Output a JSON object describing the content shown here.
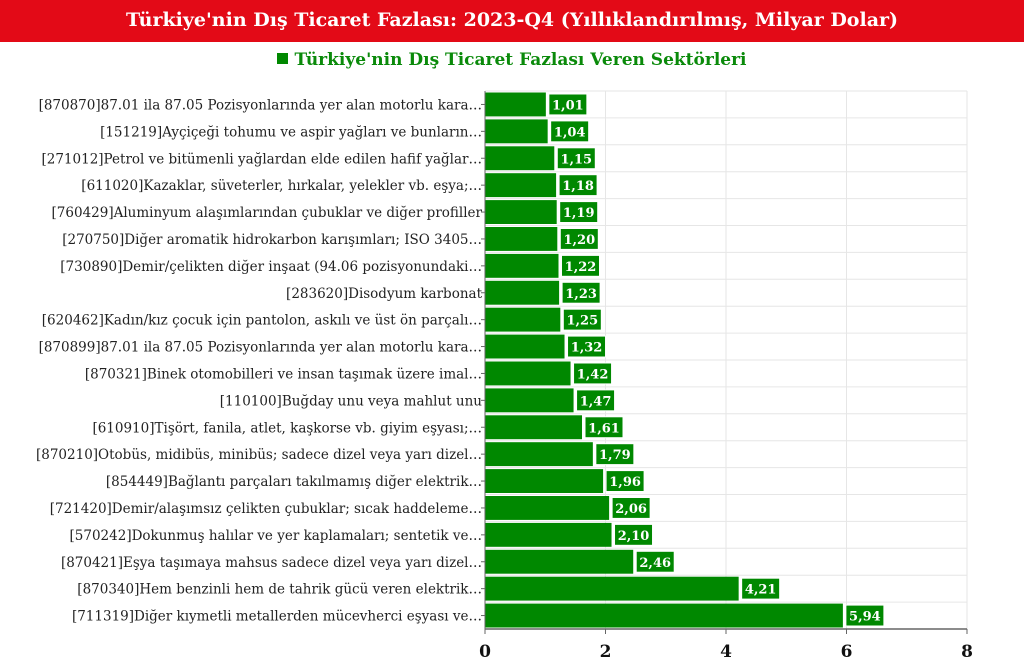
{
  "title": "Türkiye'nin Dış Ticaret Fazlası: 2023-Q4 (Yıllıklandırılmış, Milyar Dolar)",
  "colors": {
    "title_bg": "#e30a17",
    "bar": "#008800",
    "legend_text": "#0a8a0a"
  },
  "chart_data": {
    "type": "bar",
    "orientation": "horizontal",
    "title": "Türkiye'nin Dış Ticaret Fazlası: 2023-Q4 (Yıllıklandırılmış, Milyar Dolar)",
    "legend": {
      "entries": [
        "Türkiye'nin Dış Ticaret Fazlası Veren Sektörleri"
      ],
      "placement": "top-center"
    },
    "categories": [
      "[870870]87.01 ila 87.05 Pozisyonlarında yer alan motorlu kara…",
      "[151219]Ayçiçeği tohumu ve aspir yağları ve bunların…",
      "[271012]Petrol ve bitümenli yağlardan elde edilen hafif yağlar…",
      "[611020]Kazaklar, süveterler, hırkalar, yelekler vb. eşya;…",
      "[760429]Aluminyum alaşımlarından çubuklar ve diğer profiller",
      "[270750]Diğer aromatik hidrokarbon karışımları; ISO 3405…",
      "[730890]Demir/çelikten diğer inşaat (94.06 pozisyonundaki…",
      "[283620]Disodyum karbonat",
      "[620462]Kadın/kız çocuk için pantolon, askılı ve üst ön parçalı…",
      "[870899]87.01 ila 87.05 Pozisyonlarında yer alan motorlu kara…",
      "[870321]Binek otomobilleri ve insan taşımak üzere imal…",
      "[110100]Buğday unu veya mahlut unu",
      "[610910]Tişört, fanila, atlet, kaşkorse vb. giyim eşyası;…",
      "[870210]Otobüs, midibüs, minibüs; sadece dizel veya yarı dizel…",
      "[854449]Bağlantı parçaları takılmamış diğer elektrik…",
      "[721420]Demir/alaşımsız çelikten çubuklar; sıcak haddeleme…",
      "[570242]Dokunmuş halılar ve yer kaplamaları; sentetik ve…",
      "[870421]Eşya taşımaya mahsus sadece dizel veya yarı dizel…",
      "[870340]Hem benzinli hem de tahrik gücü veren elektrik…",
      "[711319]Diğer kıymetli metallerden mücevherci eşyası ve…"
    ],
    "values": [
      1.01,
      1.04,
      1.15,
      1.18,
      1.19,
      1.2,
      1.22,
      1.23,
      1.25,
      1.32,
      1.42,
      1.47,
      1.61,
      1.79,
      1.96,
      2.06,
      2.1,
      2.46,
      4.21,
      5.94
    ],
    "data_labels": [
      "1,01",
      "1,04",
      "1,15",
      "1,18",
      "1,19",
      "1,20",
      "1,22",
      "1,23",
      "1,25",
      "1,32",
      "1,42",
      "1,47",
      "1,61",
      "1,79",
      "1,96",
      "2,06",
      "2,10",
      "2,46",
      "4,21",
      "5,94"
    ],
    "xlim": [
      0,
      8
    ],
    "xticks": [
      "0",
      "2",
      "4",
      "6",
      "8"
    ],
    "grid": true
  }
}
